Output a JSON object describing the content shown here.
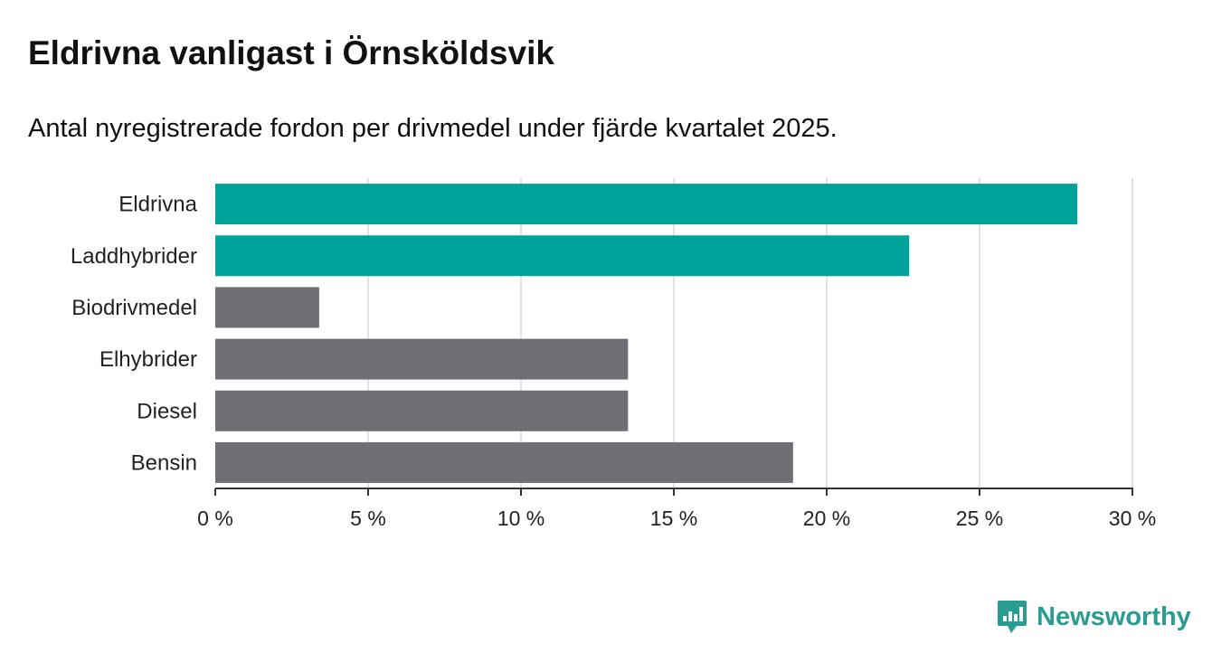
{
  "title": "Eldrivna vanligast i Örnsköldsvik",
  "subtitle": "Antal nyregistrerade fordon per drivmedel under fjärde kvartalet 2025.",
  "brand": {
    "name": "Newsworthy",
    "icon": "newsworthy-logo-icon"
  },
  "colors": {
    "highlight": "#00a39a",
    "default": "#6f6e74",
    "grid": "#d9d9d9",
    "axis": "#333333"
  },
  "chart_data": {
    "type": "bar",
    "orientation": "horizontal",
    "categories": [
      "Eldrivna",
      "Laddhybrider",
      "Biodrivmedel",
      "Elhybrider",
      "Diesel",
      "Bensin"
    ],
    "values": [
      28.2,
      22.7,
      3.4,
      13.5,
      13.5,
      18.9
    ],
    "highlighted": [
      true,
      true,
      false,
      false,
      false,
      false
    ],
    "xlim": [
      0,
      30
    ],
    "xticks": [
      0,
      5,
      10,
      15,
      20,
      25,
      30
    ],
    "xtick_labels": [
      "0 %",
      "5 %",
      "10 %",
      "15 %",
      "20 %",
      "25 %",
      "30 %"
    ],
    "title": "Eldrivna vanligast i Örnsköldsvik",
    "xlabel": "",
    "ylabel": "",
    "grid": true,
    "unit": "%"
  }
}
